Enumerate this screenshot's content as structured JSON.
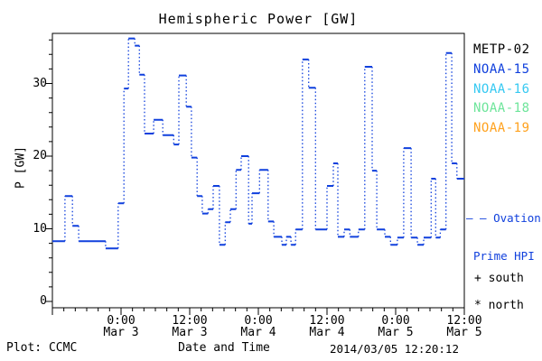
{
  "title": "Hemispheric Power [GW]",
  "colors": {
    "model_line": "#1040dd",
    "metp02": "#000000",
    "noaa15": "#1040dd",
    "noaa16": "#36c9f2",
    "noaa18": "#6ee59b",
    "noaa19": "#ffa21f",
    "axis": "#000000"
  },
  "legend": {
    "satellites": [
      {
        "label": "METP-02",
        "color": "#000000"
      },
      {
        "label": "NOAA-15",
        "color": "#1040dd"
      },
      {
        "label": "NOAA-16",
        "color": "#36c9f2"
      },
      {
        "label": "NOAA-18",
        "color": "#6ee59b"
      },
      {
        "label": "NOAA-19",
        "color": "#ffa21f"
      }
    ],
    "model": {
      "dash_prefix": "– –",
      "line1": "Ovation",
      "line2": "Prime HPI",
      "color": "#1040dd"
    },
    "markers": [
      {
        "symbol": "+",
        "label": "south"
      },
      {
        "symbol": "*",
        "label": "north"
      }
    ]
  },
  "footer": {
    "left": "Plot: CCMC",
    "center": "Date and Time",
    "right": "2014/03/05 12:20:12"
  },
  "chart_data": {
    "type": "line",
    "style": "step-histogram, dotted vertical connectors",
    "title": "Hemispheric Power [GW]",
    "xlabel": "Date and Time",
    "ylabel": "P [GW]",
    "x_start": "2014 Mar 2 12:00",
    "x_end": "2014 Mar 5 12:00",
    "x_hours_total": 72,
    "ylim": [
      0,
      37
    ],
    "y_ticks": [
      0,
      10,
      20,
      30
    ],
    "y_minor_step": 2,
    "x_minor_step_hours": 2,
    "x_major_step_hours": 12,
    "grid": false,
    "legend_position": "right-outside",
    "x_ticks": [
      {
        "time": "0:00",
        "date": "Mar 3"
      },
      {
        "time": "12:00",
        "date": "Mar 3"
      },
      {
        "time": "0:00",
        "date": "Mar 4"
      },
      {
        "time": "12:00",
        "date": "Mar 4"
      },
      {
        "time": "0:00",
        "date": "Mar 5"
      },
      {
        "time": "12:00",
        "date": "Mar 5"
      }
    ],
    "series": [
      {
        "name": "Ovation Prime HPI",
        "color": "#1040dd",
        "units": "GW",
        "x_units": "hours since 2014 Mar 2 12:00",
        "steps": [
          [
            0,
            8.3
          ],
          [
            2.2,
            14.5
          ],
          [
            3.5,
            10.4
          ],
          [
            4.6,
            8.3
          ],
          [
            9.3,
            7.3
          ],
          [
            11.5,
            13.5
          ],
          [
            12.5,
            29.3
          ],
          [
            13.3,
            36.2
          ],
          [
            14.4,
            35.2
          ],
          [
            15.2,
            31.2
          ],
          [
            16.1,
            23.1
          ],
          [
            17.7,
            25.0
          ],
          [
            19.3,
            22.9
          ],
          [
            21.2,
            21.6
          ],
          [
            22.1,
            31.1
          ],
          [
            23.4,
            26.8
          ],
          [
            24.3,
            19.8
          ],
          [
            25.3,
            14.5
          ],
          [
            26.2,
            12.1
          ],
          [
            27.2,
            12.7
          ],
          [
            28.1,
            15.9
          ],
          [
            29.2,
            7.8
          ],
          [
            30.2,
            10.9
          ],
          [
            31.1,
            12.7
          ],
          [
            32.1,
            18.1
          ],
          [
            33.0,
            20.0
          ],
          [
            34.3,
            10.7
          ],
          [
            34.9,
            14.9
          ],
          [
            36.2,
            18.1
          ],
          [
            37.7,
            11.0
          ],
          [
            38.7,
            8.9
          ],
          [
            40.1,
            7.8
          ],
          [
            40.9,
            8.9
          ],
          [
            41.7,
            7.8
          ],
          [
            42.5,
            9.9
          ],
          [
            43.7,
            33.3
          ],
          [
            44.8,
            29.4
          ],
          [
            46.0,
            9.9
          ],
          [
            48.0,
            15.9
          ],
          [
            49.1,
            19.0
          ],
          [
            49.9,
            8.9
          ],
          [
            51.0,
            9.9
          ],
          [
            52.0,
            8.9
          ],
          [
            53.5,
            9.9
          ],
          [
            54.6,
            32.3
          ],
          [
            55.9,
            18.0
          ],
          [
            56.7,
            9.9
          ],
          [
            58.1,
            8.9
          ],
          [
            59.1,
            7.8
          ],
          [
            60.3,
            8.8
          ],
          [
            61.4,
            21.1
          ],
          [
            62.7,
            8.8
          ],
          [
            63.8,
            7.8
          ],
          [
            64.9,
            8.8
          ],
          [
            66.2,
            16.9
          ],
          [
            67.0,
            8.8
          ],
          [
            67.8,
            9.9
          ],
          [
            68.8,
            34.2
          ],
          [
            69.8,
            19.0
          ],
          [
            70.7,
            16.9
          ]
        ]
      }
    ]
  }
}
